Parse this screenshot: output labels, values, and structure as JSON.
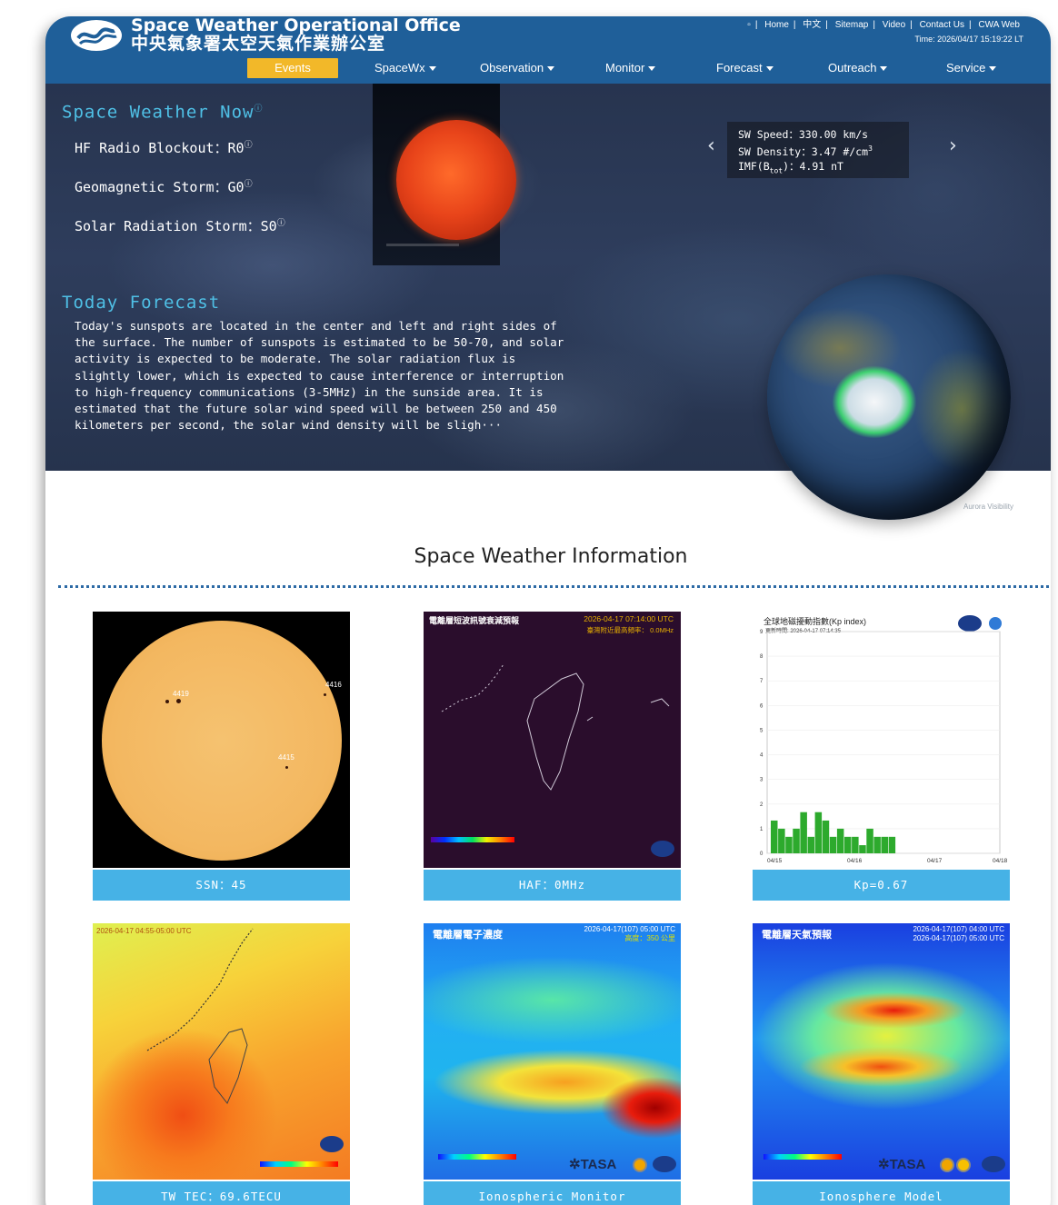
{
  "header": {
    "title_en": "Space Weather Operational Office",
    "title_zh": "中央氣象署太空天氣作業辦公室",
    "top_links": [
      "Home",
      "中文",
      "Sitemap",
      "Video",
      "Contact Us",
      "CWA Web"
    ],
    "time_label": "Time: 2026/04/17 15:19:22 LT"
  },
  "nav": {
    "items": [
      {
        "label": "Events",
        "dropdown": false,
        "active": true
      },
      {
        "label": "SpaceWx",
        "dropdown": true
      },
      {
        "label": "Observation",
        "dropdown": true
      },
      {
        "label": "Monitor",
        "dropdown": true
      },
      {
        "label": "Forecast",
        "dropdown": true
      },
      {
        "label": "Outreach",
        "dropdown": true
      },
      {
        "label": "Service",
        "dropdown": true
      }
    ]
  },
  "hero": {
    "now_heading": "Space Weather Now",
    "hf_radio": "HF Radio Blockout：R0",
    "geomagnetic": "Geomagnetic Storm：G0",
    "solar_radiation": "Solar Radiation Storm：S0",
    "forecast_heading": "Today Forecast",
    "forecast_text": "Today's sunspots are located in the center and left and right sides of the surface. The number of sunspots is estimated to be 50-70, and solar activity is expected to be moderate. The solar radiation flux is slightly lower, which is expected to cause interference or interruption to high-frequency communications (3-5MHz) in the sunside area. It is estimated that the future solar wind speed will be between 250 and 450 kilometers per second, the solar wind density will be sligh···",
    "solar_wind": {
      "speed": "SW Speed：330.00 km/s",
      "density": "SW Density：3.47 #/cm",
      "density_sup": "3",
      "imf_prefix": "IMF(B",
      "imf_sub": "tot",
      "imf_suffix": ")：4.91 nT"
    },
    "aurora_caption": "Aurora Visibility"
  },
  "info": {
    "title": "Space Weather Information",
    "panels": [
      {
        "label": "SSN：45"
      },
      {
        "label": "HAF：0MHz",
        "header": "電離層短波訊號衰減預報",
        "date": "2026-04-17 07:14:00 UTC",
        "sub": "臺灣附近最高頻率： 0.0MHz"
      },
      {
        "label": "Kp=0.67",
        "header": "全球地磁擾動指數(Kp index)",
        "updated": "更新時間: 2026-04-17 07:14:35"
      },
      {
        "label": "TW TEC：69.6TECU",
        "header": "2026-04-17 04:55-05:00 UTC"
      },
      {
        "label": "Ionospheric Monitor",
        "header": "電離層電子濃度",
        "date": "2026-04-17(107) 05:00 UTC",
        "sub": "高度：350 公里"
      },
      {
        "label": "Ionosphere Model",
        "header": "電離層天氣預報",
        "date": "2026-04-17(107) 04:00 UTC",
        "date2": "2026-04-17(107) 05:00 UTC"
      }
    ],
    "sunspots": [
      "4419",
      "4416",
      "4415"
    ]
  },
  "kp_chart": {
    "type": "bar",
    "y_ticks": [
      "0",
      "1",
      "2",
      "3",
      "4",
      "5",
      "6",
      "7",
      "8",
      "9"
    ],
    "x_labels": [
      "04/15",
      "04/16",
      "04/17",
      "04/18"
    ],
    "ylim": [
      0,
      9
    ],
    "values": [
      1.33,
      1.0,
      0.67,
      1.0,
      1.67,
      0.67,
      1.67,
      1.33,
      0.67,
      1.0,
      0.67,
      0.67,
      0.33,
      1.0,
      0.67,
      0.67,
      0.67
    ]
  },
  "colors": {
    "header": "#1f5f99",
    "active_nav": "#f2b829",
    "label_bar": "#46b2e6",
    "accent_text": "#4fc0e6"
  }
}
